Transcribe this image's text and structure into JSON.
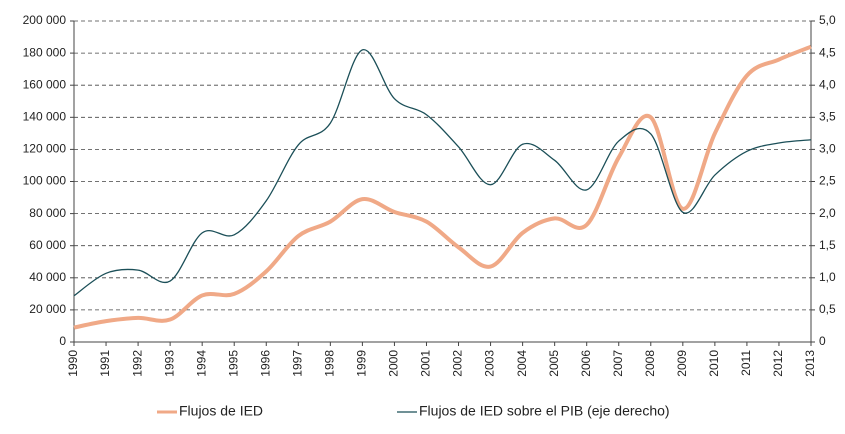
{
  "chart_data": {
    "type": "line",
    "categories": [
      "1990",
      "1991",
      "1992",
      "1993",
      "1994",
      "1995",
      "1996",
      "1997",
      "1998",
      "1999",
      "2000",
      "2001",
      "2002",
      "2003",
      "2004",
      "2005",
      "2006",
      "2007",
      "2008",
      "2009",
      "2010",
      "2011",
      "2012",
      "2013"
    ],
    "series": [
      {
        "name": "Flujos de IED",
        "color": "#f0a987",
        "values": [
          9000,
          13000,
          15000,
          14000,
          29000,
          30000,
          44000,
          66000,
          75000,
          89000,
          81000,
          75000,
          59000,
          47000,
          68000,
          77000,
          73000,
          115000,
          140000,
          83000,
          130000,
          166000,
          176000,
          184000
        ]
      },
      {
        "name": "Flujos de IED sobre el PIB (eje derecho)",
        "color": "#1b4f58",
        "axis": "y2",
        "values": [
          0.72,
          1.07,
          1.12,
          0.95,
          1.7,
          1.67,
          2.2,
          3.07,
          3.41,
          4.55,
          3.79,
          3.54,
          3.04,
          2.45,
          3.08,
          2.83,
          2.37,
          3.13,
          3.24,
          2.02,
          2.6,
          2.97,
          3.1,
          3.15
        ]
      }
    ],
    "ylim": [
      0,
      200000
    ],
    "yticks": [
      0,
      {
        "value": 20000,
        "label": "20 000"
      },
      {
        "value": 40000,
        "label": "40 000"
      },
      {
        "value": 60000,
        "label": "60 000"
      },
      {
        "value": 80000,
        "label": "80 000"
      },
      {
        "value": 100000,
        "label": "100 000"
      },
      {
        "value": 120000,
        "label": "120 000"
      },
      {
        "value": 140000,
        "label": "140 000"
      },
      {
        "value": 160000,
        "label": "160 000"
      },
      {
        "value": 180000,
        "label": "180 000"
      },
      {
        "value": 200000,
        "label": "200 000"
      }
    ],
    "y2lim": [
      0,
      5
    ],
    "y2ticks": [
      0,
      {
        "value": 0.5,
        "label": "0,5"
      },
      {
        "value": 1,
        "label": "1,0"
      },
      {
        "value": 1.5,
        "label": "1,5"
      },
      {
        "value": 2,
        "label": "2,0"
      },
      {
        "value": 2.5,
        "label": "2,5"
      },
      {
        "value": 3,
        "label": "3,0"
      },
      {
        "value": 3.5,
        "label": "3,5"
      },
      {
        "value": 4,
        "label": "4,0"
      },
      {
        "value": 4.5,
        "label": "4,5"
      },
      {
        "value": 5,
        "label": "5,0"
      }
    ],
    "grid": true,
    "legend": "bottom"
  }
}
